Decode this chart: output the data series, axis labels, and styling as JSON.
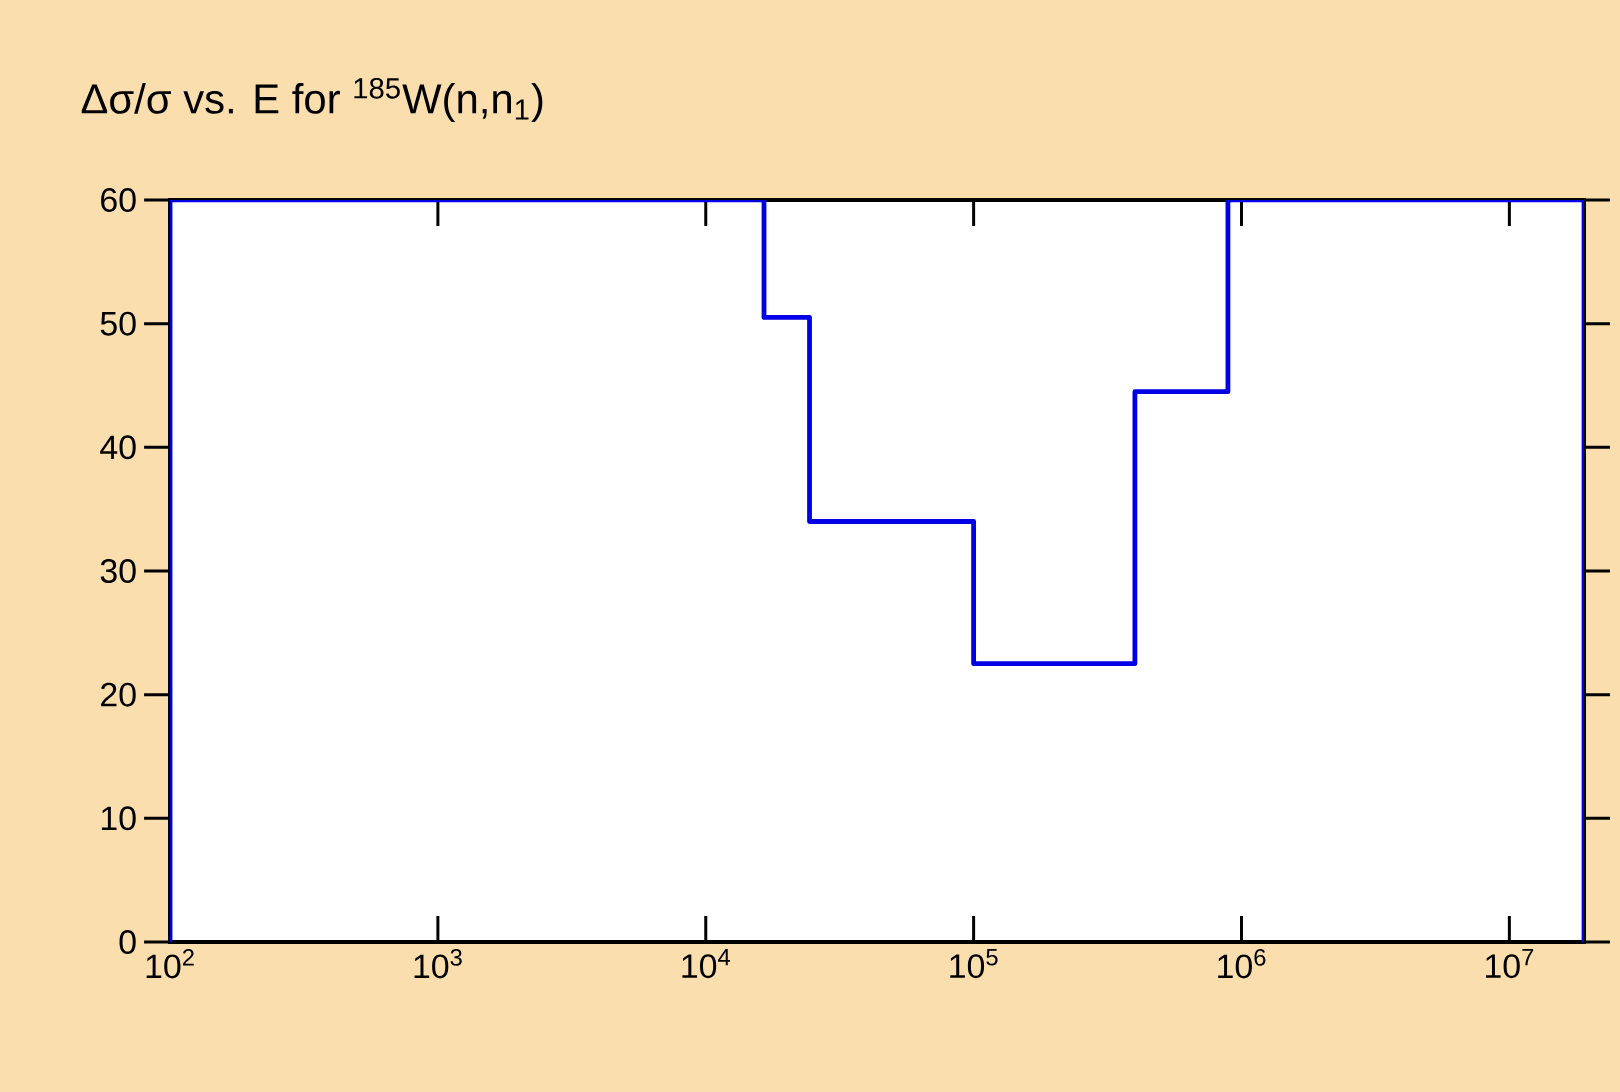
{
  "chart_data": {
    "type": "step",
    "title": "Δσ/σ vs. E for $^{185}$W(n,n$_{1}$)",
    "x": [
      100,
      100,
      16500,
      24400,
      100000,
      400000,
      890000,
      19000000
    ],
    "series": [
      {
        "color": "#0000e6",
        "values": [
          0,
          60,
          50.5,
          34,
          22.5,
          44.5,
          60,
          0
        ]
      }
    ],
    "log": "x",
    "xlim": [
      100,
      19000000
    ],
    "ylim": [
      0,
      60
    ],
    "xticks": [
      {
        "value": 100,
        "label": "10$^{2}$"
      },
      {
        "value": 1000,
        "label": "10$^{3}$"
      },
      {
        "value": 10000,
        "label": "10$^{4}$"
      },
      {
        "value": 100000,
        "label": "10$^{5}$"
      },
      {
        "value": 1000000,
        "label": "10$^{6}$"
      },
      {
        "value": 10000000,
        "label": "10$^{7}$"
      }
    ],
    "yticks": [
      0,
      10,
      20,
      30,
      40,
      50,
      60
    ],
    "marker": "none",
    "line_style": "solid"
  }
}
